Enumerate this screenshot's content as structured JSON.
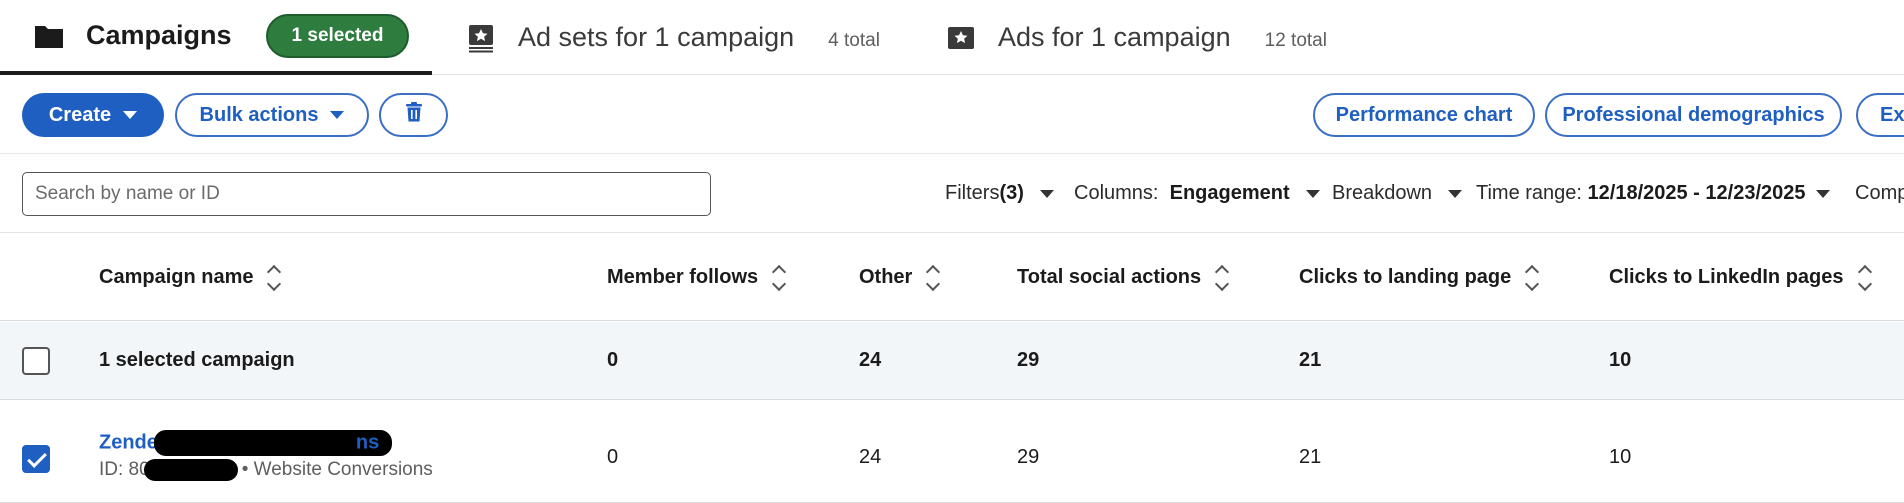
{
  "tabs": {
    "campaigns": {
      "label": "Campaigns",
      "badge": "1 selected"
    },
    "adsets": {
      "label": "Ad sets for 1 campaign",
      "count": "4 total"
    },
    "ads": {
      "label": "Ads for 1 campaign",
      "count": "12 total"
    }
  },
  "toolbar": {
    "create_label": "Create",
    "bulk_label": "Bulk actions",
    "delete_icon": "trash-icon",
    "performance_chart_label": "Performance chart",
    "professional_demographics_label": "Professional demographics",
    "export_label": "Exp"
  },
  "filters": {
    "search_placeholder": "Search by name or ID",
    "filters_label": "Filters",
    "filters_count": "(3)",
    "columns_label": "Columns:",
    "columns_value": "Engagement",
    "breakdown_label": "Breakdown",
    "time_range_label": "Time range:",
    "time_range_value": "12/18/2025 - 12/23/2025",
    "compare_label": "Comp"
  },
  "table": {
    "headers": {
      "campaign_name": "Campaign name",
      "member_follows": "Member follows",
      "other": "Other",
      "total_social_actions": "Total social actions",
      "clicks_landing": "Clicks to landing page",
      "clicks_linkedin": "Clicks to LinkedIn pages"
    },
    "summary_row": {
      "label": "1 selected campaign",
      "member_follows": "0",
      "other": "24",
      "total_social_actions": "29",
      "clicks_landing": "21",
      "clicks_linkedin": "10"
    },
    "campaign_row": {
      "name_start": "Zende",
      "name_end": "ns",
      "id_prefix": "ID: 80",
      "objective": "• Website Conversions",
      "member_follows": "0",
      "other": "24",
      "total_social_actions": "29",
      "clicks_landing": "21",
      "clicks_linkedin": "10",
      "checked": true
    }
  },
  "colors": {
    "primary": "#1f5fc2",
    "selected_badge": "#2e7d3e",
    "summary_row_bg": "#f3f6f8"
  }
}
